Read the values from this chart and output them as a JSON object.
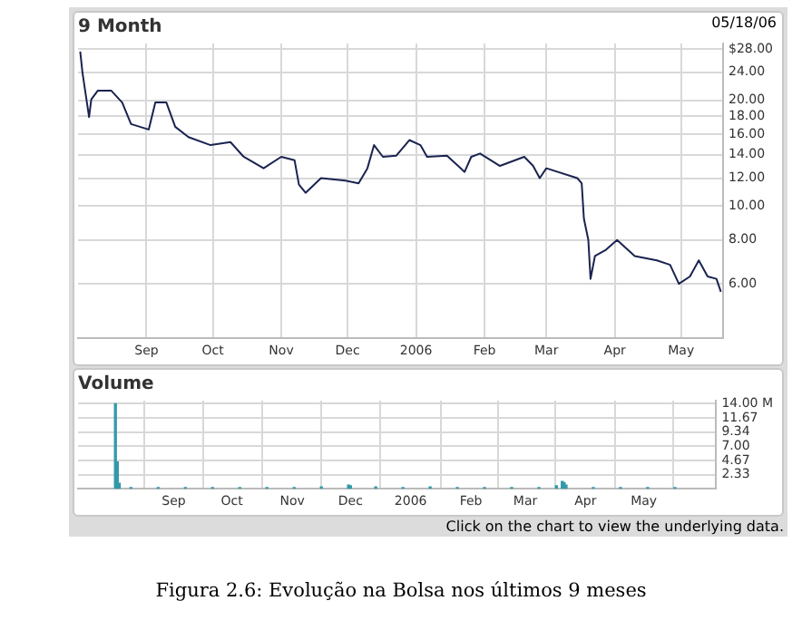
{
  "chart_data": [
    {
      "type": "line",
      "title": "9 Month",
      "annotations": [
        "05/18/06"
      ],
      "log": "y",
      "grid": true,
      "legend": false,
      "marker": "none",
      "line_style": "solid",
      "xlim": [
        "2005-08-01",
        "2006-05-20"
      ],
      "xticks": [
        {
          "value": "2005-09-01",
          "label": "Sep"
        },
        {
          "value": "2005-10-01",
          "label": "Oct"
        },
        {
          "value": "2005-11-01",
          "label": "Nov"
        },
        {
          "value": "2005-12-01",
          "label": "Dec"
        },
        {
          "value": "2006-01-01",
          "label": "2006"
        },
        {
          "value": "2006-02-01",
          "label": "Feb"
        },
        {
          "value": "2006-03-01",
          "label": "Mar"
        },
        {
          "value": "2006-04-01",
          "label": "Apr"
        },
        {
          "value": "2006-05-01",
          "label": "May"
        }
      ],
      "ylim": [
        4.2,
        29
      ],
      "yticks": [
        {
          "value": 6,
          "label": "6.00"
        },
        {
          "value": 8,
          "label": "8.00"
        },
        {
          "value": 10,
          "label": "10.00"
        },
        {
          "value": 12,
          "label": "12.00"
        },
        {
          "value": 14,
          "label": "14.00"
        },
        {
          "value": 16,
          "label": "16.00"
        },
        {
          "value": 18,
          "label": "18.00"
        },
        {
          "value": 20,
          "label": "20.00"
        },
        {
          "value": 24,
          "label": "24.00"
        },
        {
          "value": 28,
          "label": "$28.00"
        }
      ],
      "series": [
        {
          "color": "#1a2350",
          "x": [
            "2005-08-02",
            "2005-08-03",
            "2005-08-06",
            "2005-08-07",
            "2005-08-10",
            "2005-08-16",
            "2005-08-21",
            "2005-08-25",
            "2005-09-02",
            "2005-09-05",
            "2005-09-10",
            "2005-09-14",
            "2005-09-20",
            "2005-09-30",
            "2005-10-09",
            "2005-10-15",
            "2005-10-24",
            "2005-11-01",
            "2005-11-07",
            "2005-11-09",
            "2005-11-12",
            "2005-11-19",
            "2005-11-30",
            "2005-12-06",
            "2005-12-10",
            "2005-12-13",
            "2005-12-17",
            "2005-12-23",
            "2005-12-29",
            "2006-01-03",
            "2006-01-06",
            "2006-01-15",
            "2006-01-23",
            "2006-01-26",
            "2006-01-30",
            "2006-02-08",
            "2006-02-19",
            "2006-02-23",
            "2006-02-26",
            "2006-03-01",
            "2006-03-15",
            "2006-03-17",
            "2006-03-18",
            "2006-03-20",
            "2006-03-21",
            "2006-03-23",
            "2006-03-28",
            "2006-04-02",
            "2006-04-10",
            "2006-04-20",
            "2006-04-26",
            "2006-04-30",
            "2006-05-05",
            "2006-05-09",
            "2006-05-13",
            "2006-05-17",
            "2006-05-19"
          ],
          "values": [
            27.5,
            24.0,
            17.9,
            20.1,
            21.3,
            21.3,
            19.7,
            17.1,
            16.5,
            19.7,
            19.7,
            16.8,
            15.7,
            14.9,
            15.2,
            13.8,
            12.8,
            13.8,
            13.5,
            11.5,
            10.9,
            12.0,
            11.8,
            11.6,
            12.8,
            14.9,
            13.8,
            13.9,
            15.4,
            14.9,
            13.8,
            13.9,
            12.5,
            13.8,
            14.1,
            13.0,
            13.8,
            13.0,
            12.0,
            12.8,
            12.0,
            11.6,
            9.2,
            8.0,
            6.2,
            7.2,
            7.5,
            8.0,
            7.2,
            7.0,
            6.8,
            6.0,
            6.3,
            7.0,
            6.3,
            6.2,
            5.7
          ]
        }
      ]
    },
    {
      "type": "bar",
      "title": "Volume",
      "grid": true,
      "legend": false,
      "annotations": [
        "Click on the chart to view the underlying data.",
        "Figura 2.6: Evolução na Bolsa nos últimos 9 meses"
      ],
      "xlim": [
        "2005-08-01",
        "2006-05-20"
      ],
      "xticks": [
        {
          "value": "2005-09-01",
          "label": "Sep"
        },
        {
          "value": "2005-10-01",
          "label": "Oct"
        },
        {
          "value": "2005-11-01",
          "label": "Nov"
        },
        {
          "value": "2005-12-01",
          "label": "Dec"
        },
        {
          "value": "2006-01-01",
          "label": "2006"
        },
        {
          "value": "2006-02-01",
          "label": "Feb"
        },
        {
          "value": "2006-03-01",
          "label": "Mar"
        },
        {
          "value": "2006-04-01",
          "label": "Apr"
        },
        {
          "value": "2006-05-01",
          "label": "May"
        }
      ],
      "ylim": [
        0,
        14.5
      ],
      "yticks": [
        {
          "value": 2.33,
          "label": "2.33"
        },
        {
          "value": 4.67,
          "label": "4.67"
        },
        {
          "value": 7,
          "label": "7.00"
        },
        {
          "value": 9.34,
          "label": "9.34"
        },
        {
          "value": 11.67,
          "label": "11.67"
        },
        {
          "value": 14,
          "label": "14.00 M"
        }
      ],
      "series": [
        {
          "color": "#3399aa",
          "x": [
            "2005-08-02",
            "2005-08-03",
            "2005-08-04",
            "2005-08-10",
            "2005-08-24",
            "2005-09-07",
            "2005-09-21",
            "2005-10-05",
            "2005-10-19",
            "2005-11-02",
            "2005-11-16",
            "2005-11-30",
            "2005-12-01",
            "2005-12-14",
            "2005-12-28",
            "2006-01-11",
            "2006-01-25",
            "2006-02-08",
            "2006-02-22",
            "2006-03-08",
            "2006-03-17",
            "2006-03-20",
            "2006-03-21",
            "2006-03-22",
            "2006-04-05",
            "2006-04-19",
            "2006-05-03",
            "2006-05-17"
          ],
          "values": [
            14.0,
            4.4,
            0.9,
            0.2,
            0.2,
            0.2,
            0.2,
            0.2,
            0.2,
            0.2,
            0.3,
            0.6,
            0.5,
            0.3,
            0.2,
            0.3,
            0.2,
            0.2,
            0.2,
            0.2,
            0.5,
            1.2,
            1.0,
            0.6,
            0.2,
            0.2,
            0.2,
            0.2
          ]
        }
      ]
    }
  ]
}
